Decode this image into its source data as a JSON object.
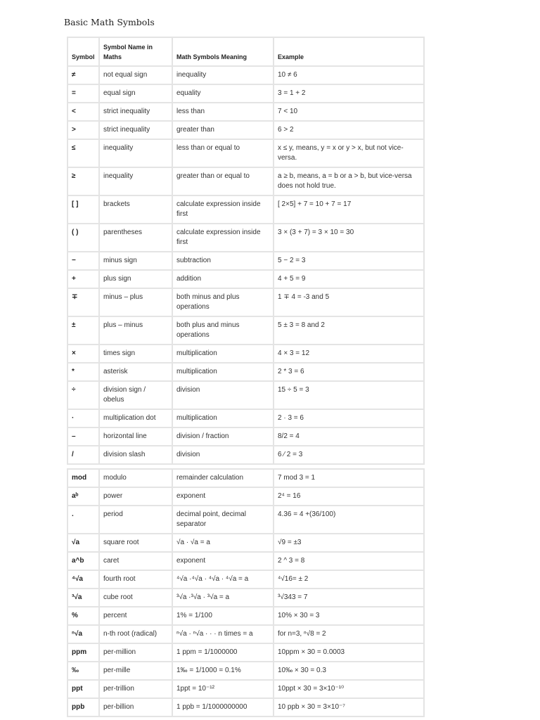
{
  "title": "Basic Math Symbols",
  "headers": [
    "Symbol",
    "Symbol Name in Maths",
    "Math Symbols Meaning",
    "Example"
  ],
  "rows1": [
    [
      "≠",
      "not equal sign",
      "inequality",
      "10 ≠ 6"
    ],
    [
      "=",
      "equal sign",
      "equality",
      "3 = 1 + 2"
    ],
    [
      "<",
      "strict inequality",
      "less than",
      "7 < 10"
    ],
    [
      ">",
      "strict inequality",
      "greater than",
      "6 > 2"
    ],
    [
      "≤",
      "inequality",
      "less than or equal to",
      "x ≤ y, means, y = x or y > x, but not vice-versa."
    ],
    [
      "≥",
      "inequality",
      "greater than or equal to",
      "a ≥ b, means, a = b or a > b, but vice-versa does not hold true."
    ],
    [
      "[ ]",
      "brackets",
      "calculate expression inside first",
      "[ 2×5] + 7 = 10 + 7 =  17"
    ],
    [
      "( )",
      "parentheses",
      "calculate expression inside first",
      "3 × (3 + 7) = 3 × 10 = 30"
    ],
    [
      "−",
      "minus sign",
      "subtraction",
      "5 − 2 = 3"
    ],
    [
      "+",
      "plus sign",
      "addition",
      "4 + 5 = 9"
    ],
    [
      "∓",
      "minus – plus",
      "both minus and plus operations",
      "1 ∓ 4 = -3 and 5"
    ],
    [
      "±",
      "plus – minus",
      "both plus and minus operations",
      "5 ± 3 = 8 and 2"
    ],
    [
      "×",
      "times sign",
      "multiplication",
      "4 × 3 = 12"
    ],
    [
      "*",
      "asterisk",
      "multiplication",
      "2 * 3 = 6"
    ],
    [
      "÷",
      "division sign / obelus",
      "division",
      "15 ÷ 5 = 3"
    ],
    [
      "·",
      "multiplication dot",
      "multiplication",
      "2 · 3 = 6"
    ],
    [
      "–",
      "horizontal line",
      "division / fraction",
      "8/2 = 4"
    ],
    [
      "/",
      "division slash",
      "division",
      "6 ⁄ 2 = 3"
    ]
  ],
  "rows2": [
    [
      "mod",
      "modulo",
      "remainder calculation",
      "7 mod 3 = 1"
    ],
    [
      "aᵇ",
      "power",
      "exponent",
      "2⁴ = 16"
    ],
    [
      ".",
      "period",
      "decimal point, decimal separator",
      "4.36 = 4 +(36/100)"
    ],
    [
      "√a",
      "square root",
      "√a · √a = a",
      "√9 = ±3"
    ],
    [
      "a^b",
      "caret",
      "exponent",
      "2 ^ 3 = 8"
    ],
    [
      "⁴√a",
      "fourth root",
      "⁴√a ·⁴√a · ⁴√a · ⁴√a = a",
      "⁴√16= ± 2"
    ],
    [
      "³√a",
      "cube root",
      "³√a ·³√a · ³√a = a",
      "³√343 = 7"
    ],
    [
      "%",
      "percent",
      "1% = 1/100",
      "10% × 30 = 3"
    ],
    [
      "ⁿ√a",
      "n-th root (radical)",
      "ⁿ√a · ⁿ√a · · · n times = a",
      "for n=3, ⁿ√8 = 2"
    ],
    [
      "ppm",
      "per-million",
      "1 ppm = 1/1000000",
      "10ppm × 30 = 0.0003"
    ],
    [
      "‰",
      "per-mille",
      "1‰ = 1/1000 = 0.1%",
      "10‰ × 30 = 0.3"
    ],
    [
      "ppt",
      "per-trillion",
      "1ppt = 10⁻¹²",
      "10ppt × 30 = 3×10⁻¹⁰"
    ],
    [
      "ppb",
      "per-billion",
      "1 ppb = 1/1000000000",
      "10 ppb × 30 = 3×10⁻⁷"
    ]
  ]
}
